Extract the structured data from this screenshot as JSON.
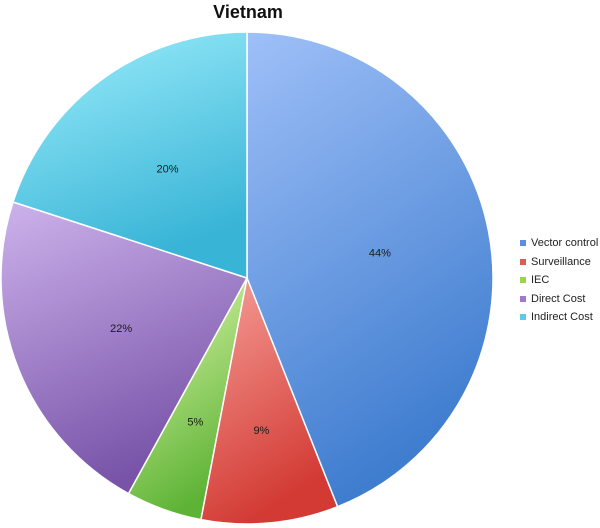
{
  "chart_data": {
    "type": "pie",
    "title": "Vietnam",
    "categories": [
      "Vector control",
      "Surveillance",
      "IEC",
      "Direct Cost",
      "Indirect Cost"
    ],
    "values": [
      44,
      9,
      5,
      22,
      20
    ],
    "labels": [
      "44%",
      "9%",
      "5%",
      "22%",
      "20%"
    ],
    "colors": [
      [
        "#9fc0f8",
        "#3f7dcf"
      ],
      [
        "#f7a09a",
        "#d23a33"
      ],
      [
        "#e4fab0",
        "#5db335"
      ],
      [
        "#cdb3ec",
        "#7853a8"
      ],
      [
        "#9eeefc",
        "#38b4d6"
      ]
    ],
    "legend_colors": [
      "#5b8fe0",
      "#e25a52",
      "#9bd44a",
      "#a17ad0",
      "#5ccbe8"
    ],
    "start_angle_deg": 0,
    "direction": "clockwise",
    "legend_position": "right"
  }
}
